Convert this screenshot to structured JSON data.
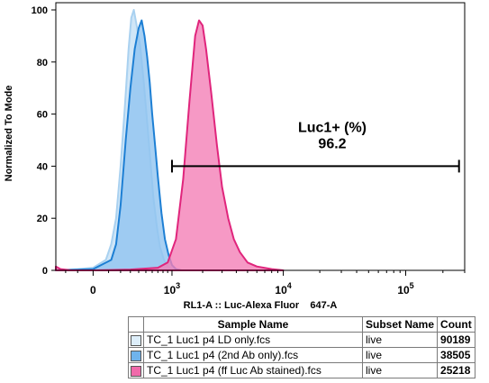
{
  "chart_data": {
    "type": "area",
    "xlabel": "RL1-A :: Luc-Alexa Fluor    647-A",
    "ylabel": "Normalized To Mode",
    "x_scale": "biexponential",
    "xlim": [
      -300,
      300000
    ],
    "ylim": [
      0,
      100
    ],
    "x_ticks": [
      {
        "value": 0,
        "base": "0",
        "exp": ""
      },
      {
        "value": 1000,
        "base": "10",
        "exp": "3"
      },
      {
        "value": 10000,
        "base": "10",
        "exp": "4"
      },
      {
        "value": 100000,
        "base": "10",
        "exp": "5"
      }
    ],
    "y_ticks": [
      0,
      20,
      40,
      60,
      80,
      100
    ],
    "gate": {
      "name": "Luc1+ (%)",
      "value": "96.2",
      "x_start": 1000,
      "x_end": 270000,
      "y": 40
    },
    "series": [
      {
        "name": "TC_1 Luc1 p4 LD only.fcs",
        "color": "#c8e2f6",
        "stroke": "#a9d1f0",
        "x": [
          -300,
          -100,
          0,
          80,
          120,
          160,
          200,
          240,
          280,
          310,
          340,
          380,
          420,
          470,
          520,
          570,
          620,
          680,
          740,
          820,
          900,
          1000,
          1200
        ],
        "y": [
          0,
          0.5,
          1,
          4,
          10,
          20,
          40,
          62,
          85,
          97,
          100,
          93,
          86,
          72,
          57,
          42,
          28,
          17,
          9,
          4,
          1.5,
          0.5,
          0
        ]
      },
      {
        "name": "TC_1 Luc1 p4 (2nd Ab only).fcs",
        "color": "#91c4f0",
        "stroke": "#1d7fd4",
        "x": [
          -300,
          0,
          120,
          160,
          200,
          250,
          300,
          350,
          400,
          440,
          480,
          520,
          560,
          600,
          650,
          700,
          770,
          840,
          920,
          1000,
          1100,
          1250
        ],
        "y": [
          0,
          0.5,
          4,
          10,
          25,
          50,
          70,
          85,
          93,
          96,
          90,
          82,
          72,
          60,
          48,
          36,
          22,
          12,
          6,
          2,
          0.5,
          0
        ]
      },
      {
        "name": "TC_1 Luc1 p4 (ff Luc Ab stained).fcs",
        "color": "#f47fb6",
        "stroke": "#e0257c",
        "x": [
          -300,
          -250,
          -150,
          0,
          300,
          700,
          900,
          1100,
          1300,
          1500,
          1700,
          1850,
          2000,
          2150,
          2400,
          2700,
          3000,
          3400,
          3800,
          4300,
          5000,
          6000,
          8000,
          10000
        ],
        "y": [
          1.5,
          0.5,
          0,
          0,
          0.3,
          1,
          3,
          12,
          35,
          65,
          90,
          96,
          94,
          85,
          68,
          48,
          32,
          20,
          12,
          7,
          3,
          1.5,
          0.5,
          0
        ]
      }
    ]
  },
  "legend": {
    "headers": [
      "Sample Name",
      "Subset Name",
      "Count"
    ],
    "rows": [
      {
        "sample": "TC_1 Luc1 p4 LD only.fcs",
        "subset": "live",
        "count": "90189",
        "color": "#ddeefa"
      },
      {
        "sample": "TC_1 Luc1 p4 (2nd Ab only).fcs",
        "subset": "live",
        "count": "38505",
        "color": "#6fb3ec"
      },
      {
        "sample": "TC_1 Luc1 p4 (ff Luc Ab stained).fcs",
        "subset": "live",
        "count": "25218",
        "color": "#f06aaa"
      }
    ]
  }
}
